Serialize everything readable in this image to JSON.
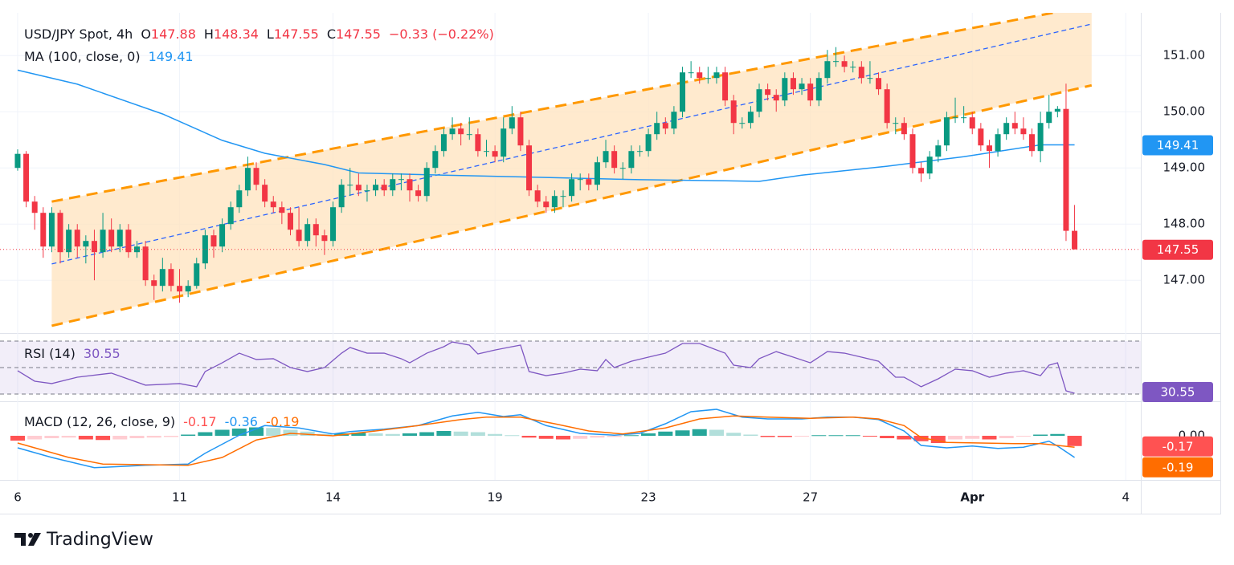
{
  "chart_data": {
    "type": "candlestick",
    "title": "USD/JPY Spot, 4h",
    "legend": {
      "o_label": "O",
      "open": 147.88,
      "h_label": "H",
      "high": 148.34,
      "l_label": "L",
      "low": 147.55,
      "c_label": "C",
      "close": 147.55,
      "change": "−0.33 (−0.22%)"
    },
    "xlim": [
      -2.07,
      131.77
    ],
    "xticks": [
      {
        "value": 0,
        "label": "6"
      },
      {
        "value": 19,
        "label": "11"
      },
      {
        "value": 37,
        "label": "14"
      },
      {
        "value": 56,
        "label": "19"
      },
      {
        "value": 74,
        "label": "23"
      },
      {
        "value": 93,
        "label": "27"
      },
      {
        "value": 112,
        "label": "Apr"
      },
      {
        "value": 130,
        "label": "4"
      }
    ],
    "ylim": [
      146.06,
      151.76
    ],
    "yticks": [
      {
        "value": 147,
        "label": "147.00"
      },
      {
        "value": 148,
        "label": "148.00"
      },
      {
        "value": 149,
        "label": "149.00"
      },
      {
        "value": 150,
        "label": "150.00"
      },
      {
        "value": 151,
        "label": "151.00"
      }
    ],
    "grid": true,
    "up_color": "#089981",
    "down_color": "#f23645",
    "candles": [
      [
        149.0,
        149.33,
        148.95,
        149.25
      ],
      [
        149.25,
        149.3,
        148.3,
        148.4
      ],
      [
        148.4,
        148.5,
        147.9,
        148.2
      ],
      [
        148.2,
        148.3,
        147.4,
        147.6
      ],
      [
        147.6,
        148.3,
        147.5,
        148.2
      ],
      [
        148.2,
        148.25,
        147.3,
        147.5
      ],
      [
        147.5,
        148.0,
        147.4,
        147.9
      ],
      [
        147.9,
        148.0,
        147.4,
        147.6
      ],
      [
        147.6,
        147.8,
        147.3,
        147.7
      ],
      [
        147.7,
        147.9,
        147.0,
        147.5
      ],
      [
        147.5,
        148.2,
        147.4,
        147.9
      ],
      [
        147.9,
        148.1,
        147.5,
        147.6
      ],
      [
        147.6,
        148.0,
        147.5,
        147.9
      ],
      [
        147.9,
        148.0,
        147.4,
        147.5
      ],
      [
        147.5,
        147.7,
        147.4,
        147.6
      ],
      [
        147.6,
        147.7,
        146.9,
        147.0
      ],
      [
        147.0,
        147.1,
        146.65,
        146.9
      ],
      [
        146.9,
        147.4,
        146.8,
        147.2
      ],
      [
        147.2,
        147.3,
        146.8,
        146.9
      ],
      [
        146.9,
        147.2,
        146.6,
        146.8
      ],
      [
        146.8,
        147.0,
        146.7,
        146.9
      ],
      [
        146.9,
        147.4,
        146.85,
        147.3
      ],
      [
        147.3,
        147.9,
        147.2,
        147.8
      ],
      [
        147.8,
        147.9,
        147.4,
        147.6
      ],
      [
        147.6,
        148.1,
        147.5,
        148.0
      ],
      [
        148.0,
        148.4,
        147.9,
        148.3
      ],
      [
        148.3,
        148.7,
        148.2,
        148.6
      ],
      [
        148.6,
        149.2,
        148.5,
        149.0
      ],
      [
        149.0,
        149.1,
        148.6,
        148.7
      ],
      [
        148.7,
        148.8,
        148.3,
        148.4
      ],
      [
        148.4,
        148.5,
        148.2,
        148.3
      ],
      [
        148.3,
        148.4,
        148.0,
        148.2
      ],
      [
        148.2,
        148.3,
        147.8,
        147.9
      ],
      [
        147.9,
        148.3,
        147.6,
        147.7
      ],
      [
        147.7,
        148.1,
        147.6,
        148.0
      ],
      [
        148.0,
        148.1,
        147.6,
        147.8
      ],
      [
        147.8,
        147.9,
        147.45,
        147.7
      ],
      [
        147.7,
        148.4,
        147.6,
        148.3
      ],
      [
        148.3,
        148.8,
        148.2,
        148.7
      ],
      [
        148.7,
        149.0,
        148.5,
        148.7
      ],
      [
        148.7,
        148.9,
        148.5,
        148.6
      ],
      [
        148.6,
        148.7,
        148.4,
        148.6
      ],
      [
        148.6,
        148.8,
        148.5,
        148.7
      ],
      [
        148.7,
        148.8,
        148.5,
        148.6
      ],
      [
        148.6,
        148.9,
        148.5,
        148.8
      ],
      [
        148.8,
        148.9,
        148.6,
        148.8
      ],
      [
        148.8,
        148.9,
        148.4,
        148.6
      ],
      [
        148.6,
        148.7,
        148.4,
        148.5
      ],
      [
        148.5,
        149.1,
        148.4,
        149.0
      ],
      [
        149.0,
        149.4,
        148.9,
        149.3
      ],
      [
        149.3,
        149.7,
        149.2,
        149.6
      ],
      [
        149.6,
        149.9,
        149.5,
        149.7
      ],
      [
        149.7,
        149.8,
        149.4,
        149.6
      ],
      [
        149.6,
        149.9,
        149.5,
        149.6
      ],
      [
        149.6,
        149.7,
        149.2,
        149.3
      ],
      [
        149.3,
        149.5,
        149.2,
        149.3
      ],
      [
        149.3,
        149.4,
        149.1,
        149.2
      ],
      [
        149.2,
        149.9,
        149.1,
        149.7
      ],
      [
        149.7,
        150.1,
        149.6,
        149.9
      ],
      [
        149.9,
        150.0,
        149.3,
        149.4
      ],
      [
        149.4,
        149.5,
        148.5,
        148.6
      ],
      [
        148.6,
        148.7,
        148.3,
        148.4
      ],
      [
        148.4,
        148.5,
        148.2,
        148.3
      ],
      [
        148.3,
        148.6,
        148.2,
        148.5
      ],
      [
        148.5,
        148.6,
        148.3,
        148.5
      ],
      [
        148.5,
        148.9,
        148.4,
        148.8
      ],
      [
        148.8,
        148.9,
        148.6,
        148.8
      ],
      [
        148.8,
        148.9,
        148.6,
        148.7
      ],
      [
        148.7,
        149.2,
        148.6,
        149.1
      ],
      [
        149.1,
        149.5,
        149.0,
        149.3
      ],
      [
        149.3,
        149.4,
        148.9,
        149.0
      ],
      [
        149.0,
        149.1,
        148.8,
        149.0
      ],
      [
        149.0,
        149.4,
        148.9,
        149.3
      ],
      [
        149.3,
        149.4,
        149.2,
        149.3
      ],
      [
        149.3,
        149.7,
        149.2,
        149.6
      ],
      [
        149.6,
        150.0,
        149.5,
        149.8
      ],
      [
        149.8,
        149.9,
        149.6,
        149.7
      ],
      [
        149.7,
        150.1,
        149.6,
        150.0
      ],
      [
        150.0,
        150.8,
        149.9,
        150.7
      ],
      [
        150.7,
        150.9,
        150.6,
        150.7
      ],
      [
        150.7,
        150.8,
        150.5,
        150.6
      ],
      [
        150.6,
        150.8,
        150.5,
        150.6
      ],
      [
        150.6,
        150.8,
        150.5,
        150.7
      ],
      [
        150.7,
        150.8,
        150.1,
        150.2
      ],
      [
        150.2,
        150.3,
        149.6,
        149.8
      ],
      [
        149.8,
        149.9,
        149.7,
        149.8
      ],
      [
        149.8,
        150.1,
        149.7,
        150.0
      ],
      [
        150.0,
        150.5,
        149.9,
        150.4
      ],
      [
        150.4,
        150.5,
        150.2,
        150.3
      ],
      [
        150.3,
        150.4,
        150.0,
        150.2
      ],
      [
        150.2,
        150.7,
        150.1,
        150.6
      ],
      [
        150.6,
        150.7,
        150.3,
        150.4
      ],
      [
        150.4,
        150.6,
        150.3,
        150.5
      ],
      [
        150.5,
        150.6,
        150.1,
        150.2
      ],
      [
        150.2,
        150.7,
        150.1,
        150.6
      ],
      [
        150.6,
        151.1,
        150.5,
        150.9
      ],
      [
        150.9,
        151.15,
        150.8,
        150.9
      ],
      [
        150.9,
        151.0,
        150.7,
        150.8
      ],
      [
        150.8,
        150.9,
        150.7,
        150.8
      ],
      [
        150.8,
        150.9,
        150.5,
        150.6
      ],
      [
        150.6,
        150.9,
        150.5,
        150.6
      ],
      [
        150.6,
        150.7,
        150.3,
        150.4
      ],
      [
        150.4,
        150.5,
        149.7,
        149.8
      ],
      [
        149.8,
        149.9,
        149.6,
        149.8
      ],
      [
        149.8,
        149.9,
        149.5,
        149.6
      ],
      [
        149.6,
        149.7,
        148.9,
        149.0
      ],
      [
        149.0,
        149.1,
        148.75,
        148.9
      ],
      [
        148.9,
        149.3,
        148.8,
        149.2
      ],
      [
        149.2,
        149.5,
        149.1,
        149.4
      ],
      [
        149.4,
        150.0,
        149.3,
        149.9
      ],
      [
        149.9,
        150.25,
        149.8,
        149.9
      ],
      [
        149.9,
        150.1,
        149.8,
        149.9
      ],
      [
        149.9,
        150.0,
        149.6,
        149.7
      ],
      [
        149.7,
        149.8,
        149.3,
        149.4
      ],
      [
        149.4,
        149.5,
        149.0,
        149.3
      ],
      [
        149.3,
        149.7,
        149.2,
        149.6
      ],
      [
        149.6,
        149.9,
        149.5,
        149.8
      ],
      [
        149.8,
        150.0,
        149.6,
        149.7
      ],
      [
        149.7,
        149.9,
        149.5,
        149.6
      ],
      [
        149.6,
        149.7,
        149.2,
        149.3
      ],
      [
        149.3,
        150.0,
        149.1,
        149.8
      ],
      [
        149.8,
        150.3,
        149.7,
        150.0
      ],
      [
        150.0,
        150.1,
        149.9,
        150.05
      ],
      [
        150.05,
        150.5,
        147.7,
        147.88
      ],
      [
        147.88,
        148.34,
        147.55,
        147.55
      ]
    ],
    "ma": {
      "name": "MA (100, close, 0)",
      "value": 149.41,
      "color": "#2196f3",
      "x": [
        0,
        7,
        17,
        24,
        29,
        36,
        40,
        50,
        59,
        73,
        83,
        87,
        92,
        102,
        111,
        120,
        124
      ],
      "values": [
        150.74,
        150.49,
        149.96,
        149.49,
        149.26,
        149.06,
        148.91,
        148.87,
        148.84,
        148.79,
        148.77,
        148.76,
        148.87,
        149.03,
        149.2,
        149.41,
        149.41
      ]
    },
    "channel": {
      "x": [
        4,
        126
      ],
      "upper": [
        148.4,
        151.89
      ],
      "middle": [
        147.29,
        151.56
      ],
      "lower": [
        146.19,
        150.47
      ],
      "color": "#ff9800",
      "middle_color": "#2962ff",
      "fill": "#ffe3bd"
    },
    "rsi": {
      "name": "RSI (14)",
      "value": 30.55,
      "color": "#7e57c2",
      "ylim": [
        24.5,
        75.5
      ],
      "band": [
        30,
        70
      ],
      "midline": 50,
      "x": [
        0,
        2,
        4,
        7,
        11,
        15,
        19,
        21,
        22,
        24,
        26,
        28,
        30,
        32,
        34,
        36,
        38,
        39,
        41,
        43,
        45,
        46,
        48,
        50,
        51,
        53,
        54,
        56,
        58,
        59,
        60,
        62,
        64,
        66,
        68,
        69,
        70,
        72,
        74,
        76,
        78,
        80,
        81,
        83,
        84,
        86,
        87,
        89,
        91,
        93,
        95,
        97,
        99,
        101,
        103,
        104,
        106,
        108,
        110,
        112,
        114,
        116,
        118,
        120,
        121,
        122,
        123,
        124
      ],
      "values": [
        47.6,
        39.7,
        37.9,
        42.7,
        45.8,
        36.7,
        37.9,
        35.5,
        47,
        53.6,
        60.9,
        56.1,
        56.7,
        50,
        47,
        50,
        60.9,
        65.2,
        60.9,
        60.9,
        56.7,
        53.6,
        60.9,
        65.8,
        69.4,
        67,
        60.3,
        63.3,
        65.8,
        67,
        47,
        43.9,
        45.8,
        48.8,
        47.6,
        56.1,
        50,
        54.8,
        57.9,
        60.9,
        68.2,
        68.2,
        65.8,
        60.9,
        51.8,
        50,
        56.7,
        62.1,
        57.9,
        53.6,
        62.1,
        60.9,
        57.9,
        54.8,
        42.7,
        42.7,
        35.5,
        41.5,
        48.8,
        47.6,
        42.7,
        45.8,
        47.6,
        43.9,
        51.8,
        53.6,
        32.4,
        30.55
      ]
    },
    "macd": {
      "name": "MACD (12, 26, close, 9)",
      "histogram_value": -0.17,
      "macd_value": -0.36,
      "signal_value": -0.19,
      "ylim": [
        -0.733,
        0.56
      ],
      "yticks": [
        {
          "value": 0,
          "label": "0.00"
        }
      ],
      "macd": {
        "color": "#2196f3",
        "x": [
          0,
          4,
          9,
          15,
          20,
          22,
          26,
          29,
          33,
          37,
          39,
          43,
          47,
          51,
          54,
          57,
          59,
          62,
          66,
          70,
          73,
          76,
          79,
          82,
          85,
          88,
          92,
          95,
          98,
          101,
          104,
          106,
          109,
          112,
          115,
          118,
          121,
          122,
          124
        ],
        "values": [
          -0.2,
          -0.36,
          -0.53,
          -0.49,
          -0.47,
          -0.29,
          0.01,
          0.17,
          0.13,
          0.03,
          0.07,
          0.11,
          0.17,
          0.33,
          0.39,
          0.32,
          0.35,
          0.17,
          0.04,
          0.01,
          0.04,
          0.2,
          0.4,
          0.44,
          0.31,
          0.28,
          0.28,
          0.31,
          0.31,
          0.27,
          0.08,
          -0.16,
          -0.2,
          -0.17,
          -0.21,
          -0.19,
          -0.09,
          -0.17,
          -0.36
        ]
      },
      "signal": {
        "color": "#ff6d00",
        "x": [
          0,
          6,
          10,
          20,
          24,
          28,
          32,
          37,
          42,
          47,
          52,
          55,
          59,
          63,
          67,
          71,
          76,
          80,
          84,
          88,
          93,
          98,
          101,
          104,
          106,
          109,
          113,
          117,
          120,
          124
        ],
        "values": [
          -0.12,
          -0.36,
          -0.47,
          -0.49,
          -0.36,
          -0.07,
          0.04,
          0,
          0.08,
          0.17,
          0.27,
          0.31,
          0.31,
          0.2,
          0.08,
          0.03,
          0.13,
          0.28,
          0.33,
          0.31,
          0.29,
          0.31,
          0.28,
          0.17,
          -0.03,
          -0.11,
          -0.12,
          -0.13,
          -0.13,
          -0.19
        ]
      },
      "histogram": {
        "colors": [
          "#26a69a",
          "#b2dfdb",
          "#ff5252",
          "#ffcdd2"
        ],
        "x": [
          0,
          2,
          4,
          6,
          8,
          10,
          12,
          14,
          16,
          18,
          20,
          22,
          24,
          26,
          28,
          30,
          32,
          34,
          36,
          38,
          40,
          42,
          44,
          46,
          48,
          50,
          52,
          54,
          56,
          58,
          60,
          62,
          64,
          66,
          68,
          70,
          72,
          74,
          76,
          78,
          80,
          82,
          84,
          86,
          88,
          90,
          92,
          94,
          96,
          98,
          100,
          102,
          104,
          106,
          108,
          110,
          112,
          114,
          116,
          118,
          120,
          122,
          124
        ],
        "values": [
          -0.08,
          -0.06,
          -0.04,
          -0.03,
          -0.06,
          -0.07,
          -0.06,
          -0.04,
          -0.03,
          -0.02,
          0.02,
          0.06,
          0.1,
          0.12,
          0.14,
          0.13,
          0.1,
          0.07,
          0.03,
          0.04,
          0.05,
          0.04,
          0.03,
          0.04,
          0.06,
          0.08,
          0.07,
          0.06,
          0.03,
          0.01,
          -0.03,
          -0.05,
          -0.06,
          -0.05,
          -0.03,
          -0.02,
          0.01,
          0.04,
          0.07,
          0.09,
          0.11,
          0.1,
          0.05,
          0.02,
          -0.02,
          -0.02,
          -0.01,
          0.01,
          0.01,
          0.01,
          -0.01,
          -0.04,
          -0.06,
          -0.09,
          -0.12,
          -0.06,
          -0.05,
          -0.06,
          -0.04,
          -0.01,
          0.02,
          0.03,
          -0.17
        ]
      }
    }
  },
  "footer": {
    "brand": "TradingView"
  }
}
